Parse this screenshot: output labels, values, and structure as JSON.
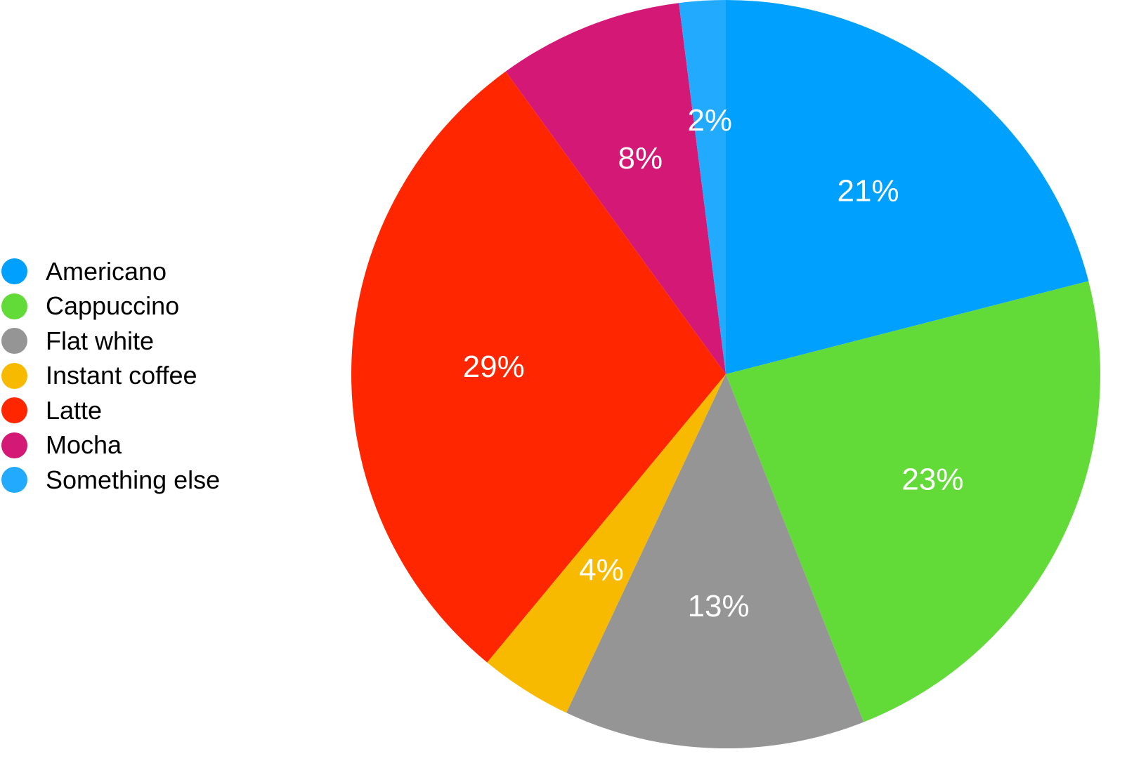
{
  "chart_data": {
    "type": "pie",
    "title": "",
    "legend_position": "left",
    "slices": [
      {
        "name": "Americano",
        "value": 21,
        "label": "21%",
        "color": "#00A0FF"
      },
      {
        "name": "Cappuccino",
        "value": 23,
        "label": "23%",
        "color": "#62DA38"
      },
      {
        "name": "Flat white",
        "value": 13,
        "label": "13%",
        "color": "#959595"
      },
      {
        "name": "Instant coffee",
        "value": 4,
        "label": "4%",
        "color": "#F8BA00"
      },
      {
        "name": "Latte",
        "value": 29,
        "label": "29%",
        "color": "#FF2600"
      },
      {
        "name": "Mocha",
        "value": 8,
        "label": "8%",
        "color": "#D41876"
      },
      {
        "name": "Something else",
        "value": 2,
        "label": "2%",
        "color": "#22AAFF"
      }
    ]
  }
}
